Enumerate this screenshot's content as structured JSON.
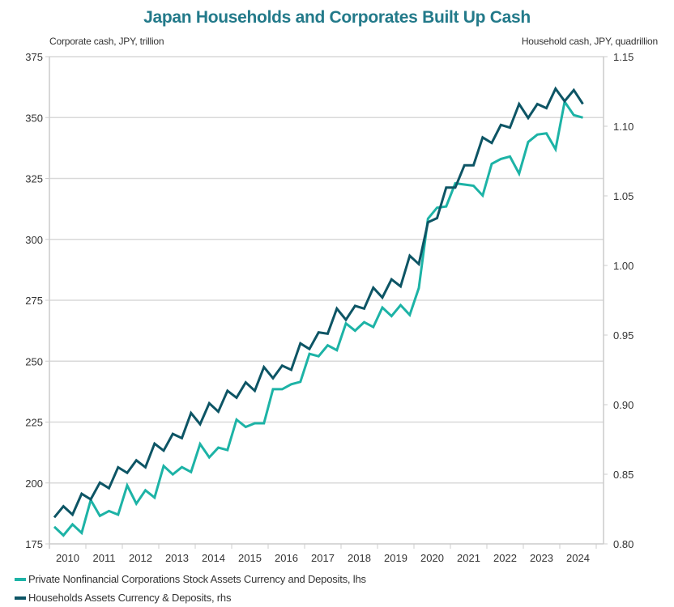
{
  "chart_data": {
    "type": "line",
    "title": "Japan Households and Corporates Built Up Cash",
    "ylabel_left": "Corporate cash, JPY, trillion",
    "ylabel_right": "Household cash, JPY, quadrillion",
    "xlabel": "",
    "ylim_left": [
      175,
      375
    ],
    "ylim_right": [
      0.8,
      1.15
    ],
    "yticks_left": [
      "175",
      "200",
      "225",
      "250",
      "275",
      "300",
      "325",
      "350",
      "375"
    ],
    "yticks_left_values": [
      175,
      200,
      225,
      250,
      275,
      300,
      325,
      350,
      375
    ],
    "yticks_right": [
      "0.80",
      "0.85",
      "0.90",
      "0.95",
      "1.00",
      "1.05",
      "1.10",
      "1.15"
    ],
    "yticks_right_values": [
      0.8,
      0.85,
      0.9,
      0.95,
      1.0,
      1.05,
      1.1,
      1.15
    ],
    "xtick_labels": [
      "2010",
      "2011",
      "2012",
      "2013",
      "2014",
      "2015",
      "2016",
      "2017",
      "2018",
      "2019",
      "2020",
      "2021",
      "2022",
      "2023",
      "2024"
    ],
    "x_frequency": "quarterly",
    "x_start": "2010Q1",
    "grid": true,
    "legend_position": "bottom-left",
    "series": [
      {
        "name": "Private Nonfinancial Corporations Stock Assets Currency and Deposits, lhs",
        "axis": "left",
        "color": "#1db3a6",
        "values": [
          182,
          178.5,
          183,
          179.5,
          193,
          186.5,
          188.5,
          187,
          199,
          191.5,
          197,
          194,
          207,
          203.5,
          206.5,
          204.5,
          216,
          210.5,
          214.5,
          213.5,
          226,
          223,
          224.5,
          224.5,
          238.5,
          238.5,
          240.5,
          241.5,
          253,
          252,
          256.5,
          254.5,
          265.5,
          262.5,
          266,
          264,
          272,
          268.5,
          273,
          269,
          280,
          308.5,
          313,
          313.5,
          323,
          322.5,
          322,
          318,
          331,
          333,
          334,
          327,
          340,
          343,
          343.5,
          337,
          356.5,
          351,
          350
        ]
      },
      {
        "name": "Households Assets Currency & Deposits, rhs",
        "axis": "right",
        "color": "#0d5565",
        "values": [
          0.819,
          0.827,
          0.821,
          0.836,
          0.832,
          0.844,
          0.84,
          0.855,
          0.851,
          0.86,
          0.855,
          0.872,
          0.867,
          0.879,
          0.876,
          0.894,
          0.886,
          0.901,
          0.895,
          0.91,
          0.905,
          0.916,
          0.91,
          0.927,
          0.919,
          0.928,
          0.925,
          0.944,
          0.94,
          0.952,
          0.951,
          0.969,
          0.961,
          0.971,
          0.969,
          0.984,
          0.977,
          0.99,
          0.985,
          1.007,
          1.001,
          1.031,
          1.034,
          1.056,
          1.056,
          1.072,
          1.072,
          1.092,
          1.088,
          1.101,
          1.099,
          1.116,
          1.106,
          1.116,
          1.113,
          1.127,
          1.118,
          1.126,
          1.116
        ]
      }
    ]
  },
  "colors": {
    "title": "#237a8a",
    "grid": "#d9d9d9",
    "axis": "#cccccc"
  }
}
